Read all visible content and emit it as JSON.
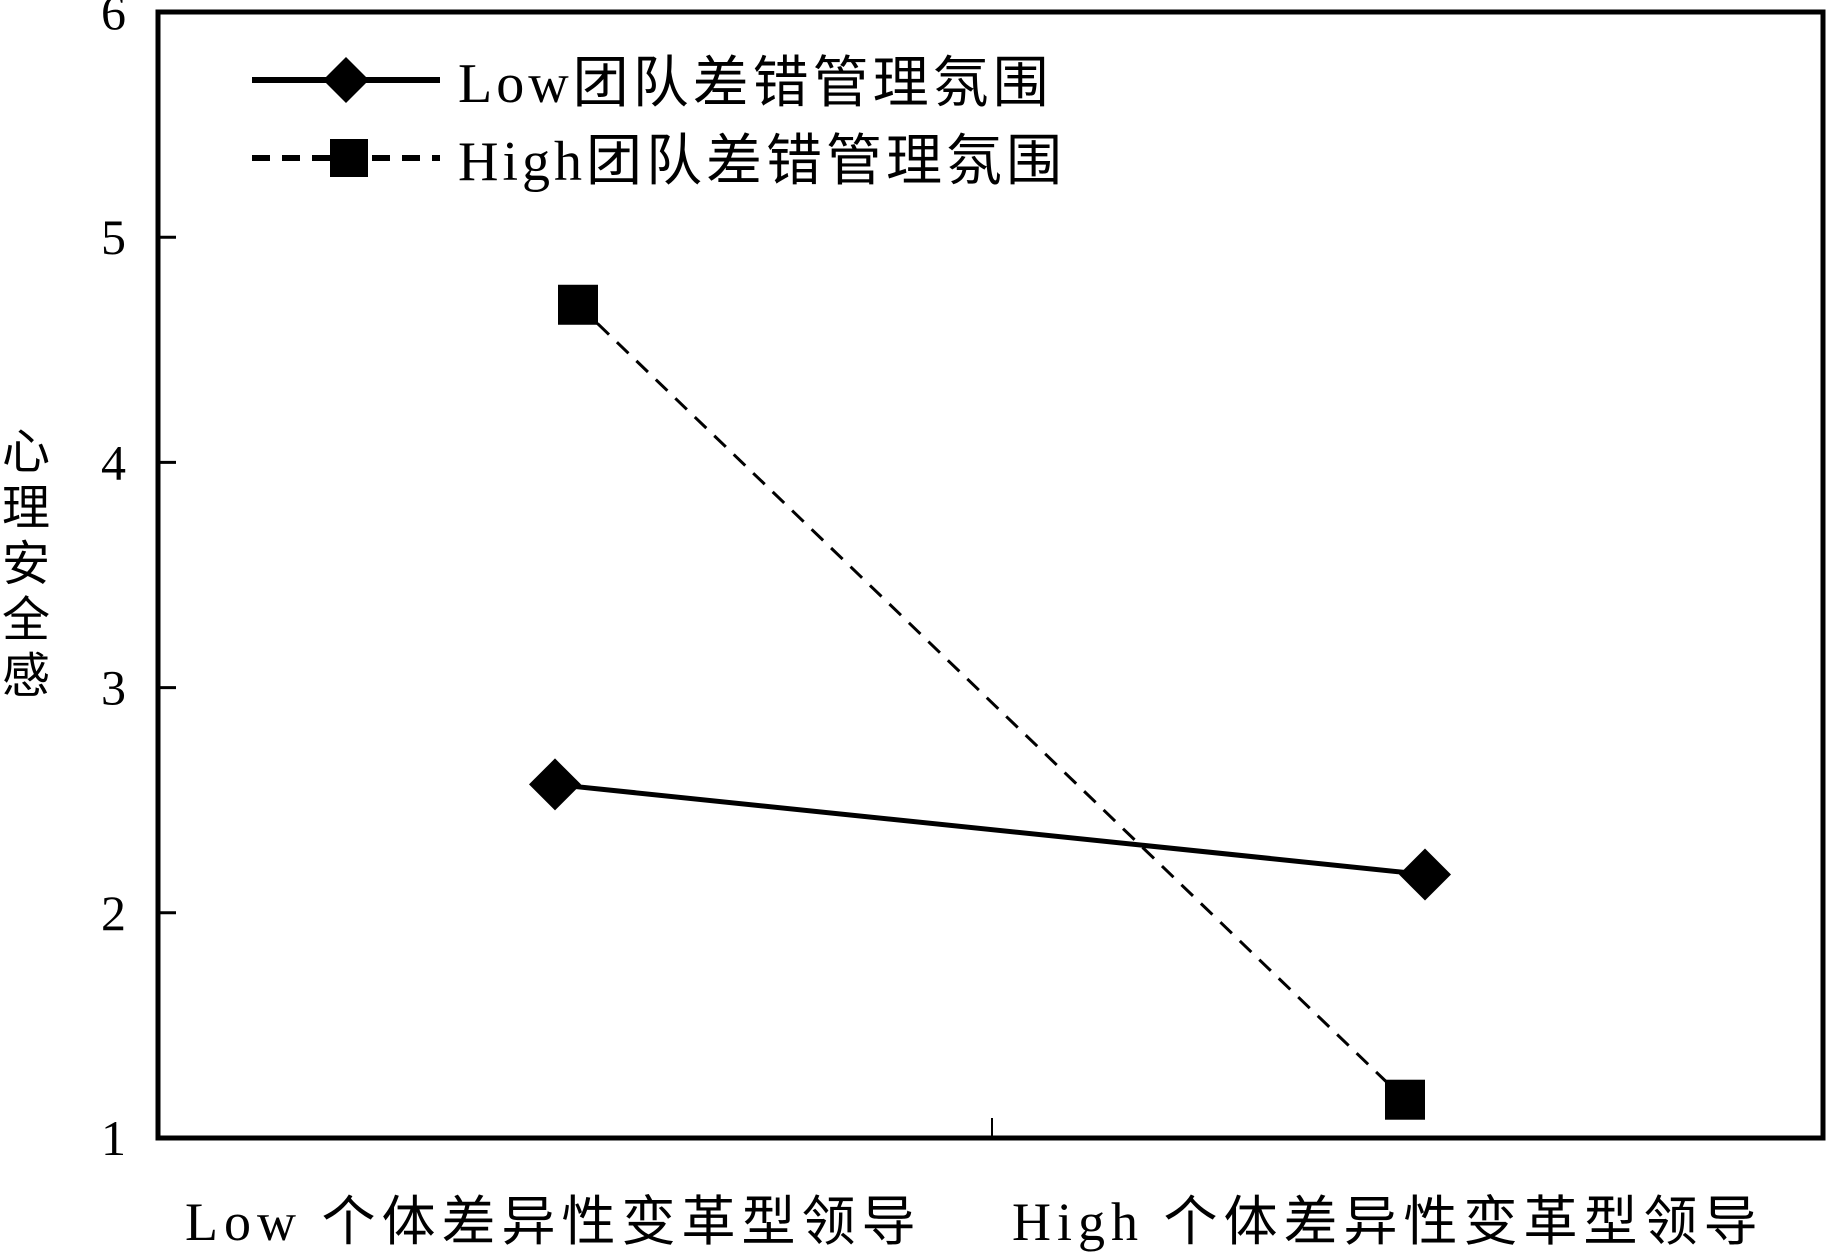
{
  "chart_data": {
    "type": "line",
    "title": "",
    "xlabel": "",
    "ylabel": "心理安全感",
    "categories": [
      "Low 个体差异性变革型领导",
      "High 个体差异性变革型领导"
    ],
    "ylim": [
      1,
      6
    ],
    "yticks": [
      1,
      2,
      3,
      4,
      5,
      6
    ],
    "grid": false,
    "legend_position": "top-left",
    "series": [
      {
        "name": "Low团队差错管理氛围",
        "values": [
          2.57,
          2.17
        ],
        "line_style": "solid",
        "marker": "diamond",
        "color": "#000000"
      },
      {
        "name": "High团队差错管理氛围",
        "values": [
          4.7,
          1.17
        ],
        "line_style": "dashed",
        "marker": "square",
        "color": "#000000"
      }
    ]
  }
}
